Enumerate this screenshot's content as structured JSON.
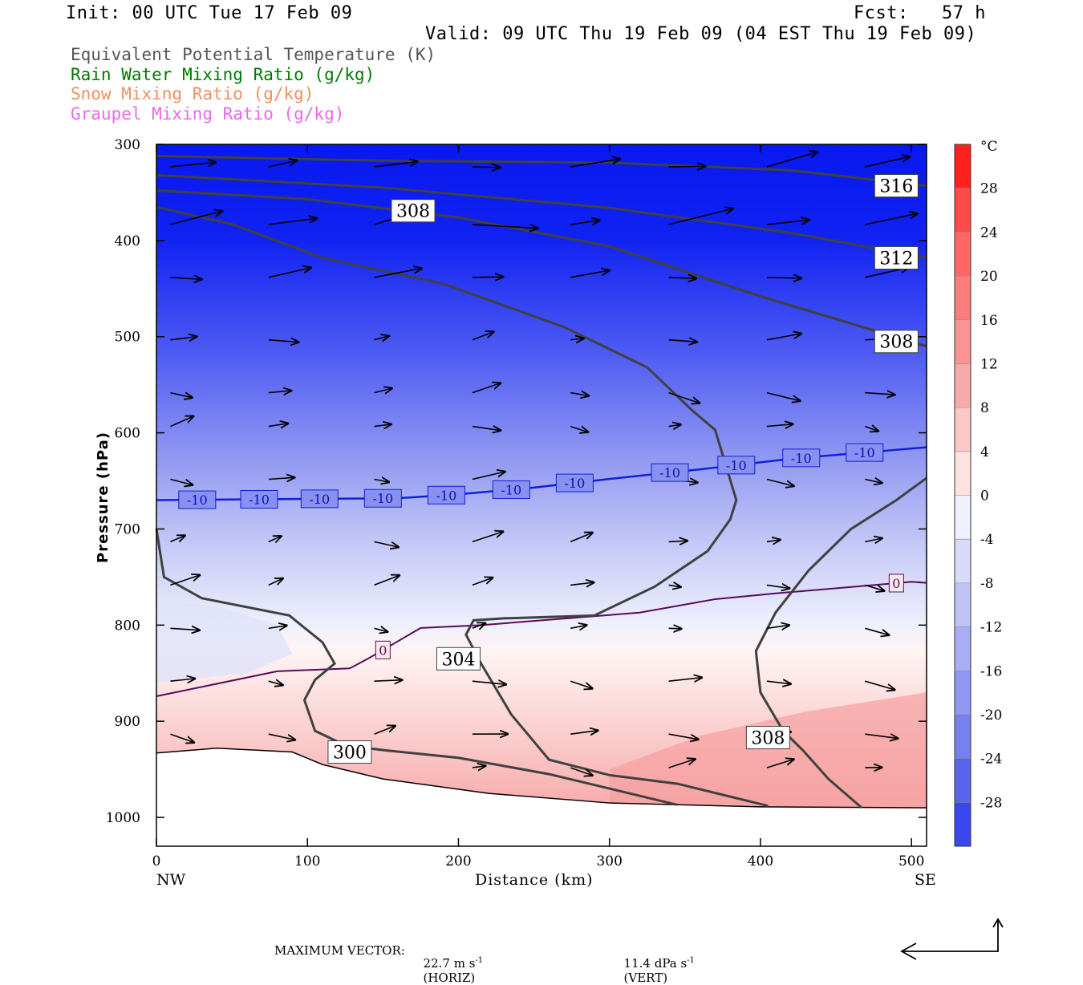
{
  "header": {
    "init": "Init: 00 UTC Tue 17 Feb 09",
    "fcst": "Fcst:   57 h",
    "valid": "Valid: 09 UTC Thu 19 Feb 09 (04 EST Thu 19 Feb 09)"
  },
  "legend": [
    {
      "label": "Equivalent Potential Temperature (K)",
      "color": "#555555"
    },
    {
      "label": "Rain Water Mixing Ratio (g/kg)",
      "color": "#007a00"
    },
    {
      "label": "Snow Mixing Ratio (g/kg)",
      "color": "#f09060"
    },
    {
      "label": "Graupel Mixing Ratio (g/kg)",
      "color": "#ee66ee"
    }
  ],
  "axes": {
    "ylabel": "Pressure (hPa)",
    "xlabel": "Distance (km)",
    "left_end": "NW",
    "right_end": "SE"
  },
  "colorbar": {
    "unit": "°C",
    "levels": [
      "28",
      "24",
      "20",
      "16",
      "12",
      "8",
      "4",
      "0",
      "-4",
      "-8",
      "-12",
      "-16",
      "-20",
      "-24",
      "-28"
    ]
  },
  "footer": {
    "max_vector_label": "MAXIMUM VECTOR:",
    "horiz": "22.7 m s",
    "horiz_sup": "-1",
    "horiz_tag": "(HORIZ)",
    "vert": "11.4 dPa s",
    "vert_sup": "-1",
    "vert_tag": "(VERT)"
  },
  "chart_data": {
    "type": "heatmap",
    "title": "Equivalent Potential Temperature (K)",
    "xlabel": "Distance (km)",
    "ylabel": "Pressure (hPa)",
    "xlim": [
      0,
      510
    ],
    "ylim": [
      1030,
      300
    ],
    "x_ticks": [
      0,
      100,
      200,
      300,
      400,
      500
    ],
    "x_tick_labels": [
      "0",
      "100",
      "200",
      "300",
      "400",
      "500"
    ],
    "y_ticks": [
      300,
      400,
      500,
      600,
      700,
      800,
      900,
      1000
    ],
    "y_tick_labels": [
      "300",
      "400",
      "500",
      "600",
      "700",
      "800",
      "900",
      "1000"
    ],
    "fill_variable": "Temperature (°C)",
    "fill_levels": [
      -28,
      -24,
      -20,
      -16,
      -12,
      -8,
      -4,
      0,
      4,
      8,
      12,
      16,
      20,
      24,
      28
    ],
    "surface": [
      [
        0,
        933
      ],
      [
        40,
        928
      ],
      [
        90,
        932
      ],
      [
        110,
        945
      ],
      [
        150,
        960
      ],
      [
        220,
        975
      ],
      [
        300,
        985
      ],
      [
        400,
        989
      ],
      [
        510,
        990
      ]
    ],
    "isotherm_minus10": {
      "label": "-10",
      "points": [
        [
          0,
          670
        ],
        [
          80,
          669
        ],
        [
          160,
          668
        ],
        [
          200,
          664
        ],
        [
          250,
          657
        ],
        [
          300,
          648
        ],
        [
          360,
          638
        ],
        [
          420,
          627
        ],
        [
          510,
          615
        ]
      ],
      "label_x": [
        27,
        68,
        108,
        150,
        192,
        235,
        277,
        340,
        384,
        427,
        469
      ]
    },
    "isotherm_zero": {
      "label": "0",
      "points": [
        [
          0,
          874
        ],
        [
          80,
          848
        ],
        [
          128,
          845
        ],
        [
          140,
          835
        ],
        [
          175,
          803
        ],
        [
          215,
          800
        ],
        [
          320,
          787
        ],
        [
          370,
          773
        ],
        [
          410,
          767
        ],
        [
          500,
          755
        ],
        [
          510,
          756
        ]
      ],
      "label_x": [
        150,
        490
      ]
    },
    "theta_e_contours": [
      {
        "label": "316",
        "points": [
          [
            0,
            312
          ],
          [
            150,
            317
          ],
          [
            300,
            319
          ],
          [
            420,
            327
          ],
          [
            510,
            343
          ]
        ],
        "label_xy": [
          490,
          343
        ]
      },
      {
        "label": "312",
        "points": [
          [
            0,
            332
          ],
          [
            150,
            345
          ],
          [
            300,
            366
          ],
          [
            420,
            392
          ],
          [
            510,
            418
          ]
        ],
        "label_xy": [
          490,
          418
        ]
      },
      {
        "label": "308",
        "points": [
          [
            0,
            348
          ],
          [
            100,
            357
          ],
          [
            200,
            376
          ],
          [
            300,
            406
          ],
          [
            400,
            458
          ],
          [
            510,
            510
          ]
        ],
        "label_xy": [
          170,
          369
        ]
      },
      {
        "label": "308",
        "points": [
          [
            0,
            348
          ],
          [
            100,
            357
          ],
          [
            200,
            376
          ],
          [
            300,
            406
          ],
          [
            400,
            458
          ],
          [
            510,
            510
          ]
        ],
        "label_xy": [
          490,
          505
        ]
      },
      {
        "label": "304",
        "points": [
          [
            0,
            365
          ],
          [
            50,
            383
          ],
          [
            110,
            418
          ],
          [
            190,
            445
          ],
          [
            270,
            490
          ],
          [
            325,
            532
          ],
          [
            355,
            577
          ],
          [
            370,
            597
          ],
          [
            384,
            670
          ],
          [
            380,
            690
          ],
          [
            365,
            723
          ],
          [
            330,
            760
          ],
          [
            290,
            790
          ],
          [
            230,
            793
          ],
          [
            210,
            795
          ],
          [
            205,
            810
          ],
          [
            215,
            840
          ],
          [
            235,
            893
          ],
          [
            260,
            940
          ],
          [
            300,
            956
          ],
          [
            345,
            965
          ],
          [
            405,
            988
          ]
        ],
        "label_xy": [
          200,
          835
        ]
      },
      {
        "label": "308",
        "points": [
          [
            510,
            647
          ],
          [
            490,
            670
          ],
          [
            460,
            700
          ],
          [
            432,
            743
          ],
          [
            410,
            787
          ],
          [
            397,
            827
          ],
          [
            400,
            870
          ],
          [
            415,
            910
          ],
          [
            428,
            930
          ],
          [
            445,
            960
          ],
          [
            467,
            990
          ]
        ],
        "label_xy": [
          405,
          917
        ]
      },
      {
        "label": "300",
        "points": [
          [
            0,
            700
          ],
          [
            5,
            750
          ],
          [
            30,
            772
          ],
          [
            88,
            790
          ],
          [
            110,
            818
          ],
          [
            118,
            840
          ],
          [
            105,
            857
          ],
          [
            98,
            878
          ],
          [
            105,
            910
          ],
          [
            125,
            925
          ],
          [
            150,
            930
          ],
          [
            200,
            938
          ],
          [
            260,
            955
          ],
          [
            300,
            970
          ],
          [
            345,
            987
          ]
        ],
        "label_xy": [
          128,
          932
        ]
      }
    ],
    "max_vector_horiz": "22.7 m s-1",
    "max_vector_vert": "11.4 dPa s-1"
  }
}
